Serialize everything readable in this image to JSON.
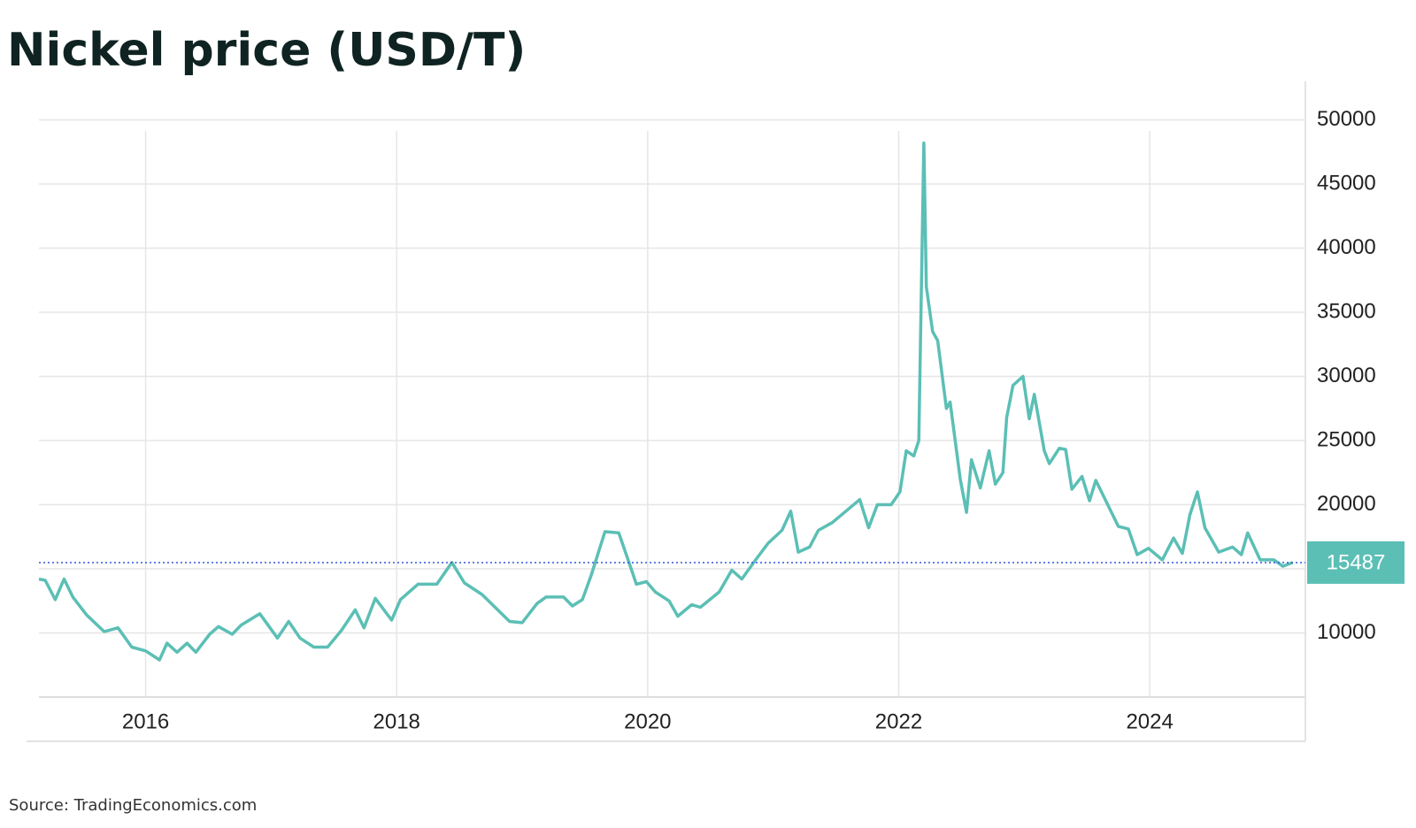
{
  "chart_data": {
    "type": "line",
    "title": "Nickel price (USD/T)",
    "source": "Source: TradingEconomics.com",
    "series": [
      {
        "name": "Nickel",
        "color": "#5bbfb5",
        "x": [
          2015.15,
          2015.2,
          2015.28,
          2015.35,
          2015.42,
          2015.53,
          2015.67,
          2015.78,
          2015.89,
          2016.0,
          2016.11,
          2016.17,
          2016.25,
          2016.33,
          2016.4,
          2016.51,
          2016.58,
          2016.69,
          2016.76,
          2016.91,
          2017.05,
          2017.14,
          2017.23,
          2017.34,
          2017.45,
          2017.56,
          2017.67,
          2017.74,
          2017.83,
          2017.96,
          2018.03,
          2018.17,
          2018.32,
          2018.44,
          2018.54,
          2018.68,
          2018.9,
          2019.0,
          2019.12,
          2019.19,
          2019.33,
          2019.4,
          2019.48,
          2019.55,
          2019.66,
          2019.77,
          2019.84,
          2019.91,
          2019.99,
          2020.06,
          2020.17,
          2020.24,
          2020.35,
          2020.42,
          2020.57,
          2020.67,
          2020.75,
          2020.86,
          2020.96,
          2021.07,
          2021.14,
          2021.2,
          2021.29,
          2021.36,
          2021.47,
          2021.58,
          2021.69,
          2021.76,
          2021.83,
          2021.94,
          2022.01,
          2022.06,
          2022.12,
          2022.16,
          2022.2,
          2022.22,
          2022.27,
          2022.31,
          2022.38,
          2022.41,
          2022.49,
          2022.54,
          2022.58,
          2022.65,
          2022.72,
          2022.77,
          2022.83,
          2022.86,
          2022.91,
          2022.99,
          2023.04,
          2023.08,
          2023.16,
          2023.2,
          2023.28,
          2023.33,
          2023.38,
          2023.46,
          2023.52,
          2023.57,
          2023.68,
          2023.75,
          2023.83,
          2023.9,
          2023.99,
          2024.1,
          2024.19,
          2024.26,
          2024.32,
          2024.38,
          2024.44,
          2024.55,
          2024.66,
          2024.73,
          2024.78,
          2024.88,
          2024.99,
          2025.06,
          2025.14
        ],
        "values": [
          14200,
          14100,
          12600,
          14200,
          12800,
          11400,
          10100,
          10400,
          8900,
          8600,
          7900,
          9200,
          8500,
          9200,
          8500,
          9900,
          10500,
          9900,
          10600,
          11500,
          9600,
          10900,
          9600,
          8900,
          8900,
          10200,
          11800,
          10400,
          12700,
          11000,
          12600,
          13800,
          13800,
          15500,
          13900,
          13000,
          10900,
          10800,
          12300,
          12800,
          12800,
          12100,
          12600,
          14500,
          17900,
          17800,
          15800,
          13800,
          14000,
          13200,
          12500,
          11300,
          12200,
          12000,
          13200,
          14900,
          14200,
          15700,
          17000,
          18000,
          19500,
          16300,
          16700,
          18000,
          18600,
          19500,
          20400,
          18200,
          20000,
          20000,
          21000,
          24200,
          23800,
          25000,
          48200,
          37000,
          33500,
          32800,
          27500,
          28000,
          22000,
          19400,
          23500,
          21300,
          24200,
          21600,
          22500,
          26800,
          29300,
          30000,
          26700,
          28600,
          24200,
          23200,
          24400,
          24300,
          21200,
          22200,
          20300,
          21900,
          19700,
          18300,
          18100,
          16100,
          16600,
          15700,
          17400,
          16200,
          19200,
          21000,
          18200,
          16300,
          16700,
          16100,
          17800,
          15700,
          15700,
          15200,
          15487
        ]
      }
    ],
    "xlim": [
      2015.15,
      2025.24
    ],
    "xticks": [
      2016,
      2018,
      2020,
      2022,
      2024
    ],
    "ylim": [
      5000,
      53000
    ],
    "yticks": [
      10000,
      15000,
      20000,
      25000,
      30000,
      35000,
      40000,
      45000,
      50000
    ],
    "grid": true,
    "last_value_marker": true
  }
}
